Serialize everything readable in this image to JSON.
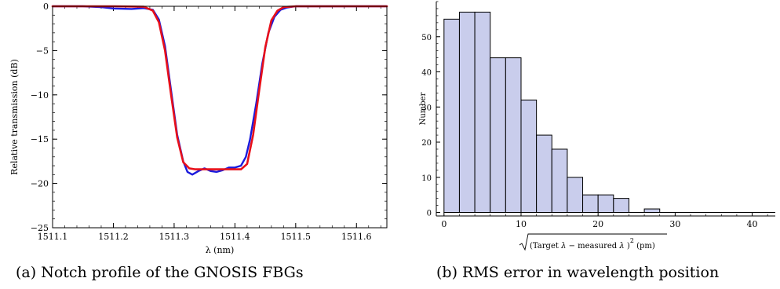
{
  "chart_data": [
    {
      "id": "a",
      "type": "line",
      "title": "",
      "xlabel": "λ (nm)",
      "ylabel": "Relative transmission (dB)",
      "xlim": [
        1511.1,
        1511.65
      ],
      "ylim": [
        -25,
        0
      ],
      "xticks": [
        1511.1,
        1511.2,
        1511.3,
        1511.4,
        1511.5,
        1511.6
      ],
      "yticks": [
        0,
        -5,
        -10,
        -15,
        -20,
        -25
      ],
      "grid": false,
      "series": [
        {
          "color": "#1a1adc",
          "x": [
            1511.1,
            1511.15,
            1511.18,
            1511.2,
            1511.23,
            1511.25,
            1511.265,
            1511.275,
            1511.285,
            1511.295,
            1511.305,
            1511.315,
            1511.322,
            1511.33,
            1511.34,
            1511.35,
            1511.36,
            1511.37,
            1511.38,
            1511.39,
            1511.4,
            1511.41,
            1511.418,
            1511.425,
            1511.435,
            1511.445,
            1511.455,
            1511.465,
            1511.475,
            1511.485,
            1511.5,
            1511.55,
            1511.6,
            1511.65
          ],
          "y": [
            0,
            0,
            -0.1,
            -0.25,
            -0.3,
            -0.2,
            -0.4,
            -1.5,
            -4.5,
            -9.5,
            -14.5,
            -17.5,
            -18.7,
            -19.0,
            -18.6,
            -18.3,
            -18.6,
            -18.7,
            -18.5,
            -18.2,
            -18.2,
            -18.0,
            -17.0,
            -15.0,
            -11.0,
            -6.5,
            -3.0,
            -1.2,
            -0.4,
            -0.15,
            0,
            0,
            0,
            0
          ]
        },
        {
          "color": "#e8101a",
          "x": [
            1511.1,
            1511.2,
            1511.25,
            1511.265,
            1511.275,
            1511.285,
            1511.295,
            1511.305,
            1511.315,
            1511.325,
            1511.335,
            1511.41,
            1511.42,
            1511.43,
            1511.44,
            1511.45,
            1511.46,
            1511.47,
            1511.48,
            1511.5,
            1511.55,
            1511.65
          ],
          "y": [
            0,
            0,
            -0.05,
            -0.5,
            -1.8,
            -5.0,
            -10.0,
            -14.8,
            -17.6,
            -18.3,
            -18.4,
            -18.4,
            -17.8,
            -14.5,
            -9.5,
            -4.6,
            -1.6,
            -0.5,
            -0.1,
            0,
            0,
            0
          ]
        }
      ]
    },
    {
      "id": "b",
      "type": "bar",
      "title": "",
      "xlabel": "√(Target λ − measured λ)² (pm)",
      "xlabel_parts": [
        "(Target",
        "λ",
        "−",
        "measured",
        "λ",
        ")",
        "2",
        "(pm)"
      ],
      "ylabel": "Number",
      "xlim": [
        -1,
        43
      ],
      "ylim": [
        -1,
        60
      ],
      "xticks": [
        0,
        10,
        20,
        30,
        40
      ],
      "yticks": [
        0,
        10,
        20,
        30,
        40,
        50
      ],
      "grid": false,
      "bar_color": "#c9cdec",
      "bin_width": 2,
      "bin_starts": [
        0,
        2,
        4,
        6,
        8,
        10,
        12,
        14,
        16,
        18,
        20,
        22,
        24,
        26,
        28,
        30,
        32,
        34,
        36,
        38,
        40,
        42
      ],
      "values": [
        55,
        57,
        57,
        44,
        44,
        32,
        22,
        18,
        10,
        5,
        5,
        4,
        0,
        1,
        0,
        0,
        0,
        0,
        0,
        0,
        0,
        0
      ]
    }
  ],
  "captions": {
    "a": "(a)  Notch profile of the GNOSIS FBGs",
    "b": "(b)  RMS error in wavelength position"
  }
}
